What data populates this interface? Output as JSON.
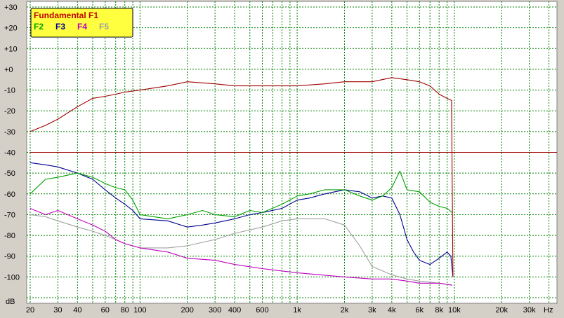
{
  "chart_data": {
    "type": "line",
    "title": "",
    "xlabel": "",
    "ylabel": "",
    "x_unit_label": "Hz",
    "y_unit_label": "dB",
    "x_scale": "log",
    "xlim": [
      19,
      45000
    ],
    "ylim": [
      -110,
      30
    ],
    "grid": true,
    "legend_position": "top-left",
    "legend_title": "Fundamental F1",
    "y_ticks": [
      30,
      20,
      10,
      0,
      -10,
      -20,
      -30,
      -40,
      -50,
      -60,
      -70,
      -80,
      -90,
      -100
    ],
    "y_tick_labels": [
      "+30",
      "+20",
      "+10",
      "+0",
      "-10",
      "-20",
      "-30",
      "-40",
      "-50",
      "-60",
      "-70",
      "-80",
      "-90",
      "-100"
    ],
    "x_ticks": [
      20,
      30,
      40,
      60,
      80,
      100,
      200,
      300,
      400,
      600,
      1000,
      2000,
      3000,
      4000,
      6000,
      8000,
      10000,
      20000,
      30000
    ],
    "x_tick_labels": [
      "20",
      "30",
      "40",
      "60",
      "80",
      "100",
      "200",
      "300",
      "400",
      "600",
      "1k",
      "2k",
      "3k",
      "4k",
      "6k",
      "8k",
      "10k",
      "20k",
      "30k"
    ],
    "reference_level": -40,
    "series": [
      {
        "name": "F1",
        "color": "#a00000",
        "x": [
          20,
          25,
          30,
          40,
          50,
          60,
          70,
          80,
          100,
          150,
          200,
          300,
          400,
          600,
          800,
          1000,
          1500,
          2000,
          3000,
          4000,
          5000,
          6000,
          7000,
          8000,
          9000,
          9600,
          9800
        ],
        "y": [
          -30,
          -27,
          -24,
          -18,
          -14,
          -13,
          -12,
          -11,
          -10,
          -8,
          -6,
          -7,
          -8,
          -8,
          -8,
          -8,
          -7,
          -6,
          -6,
          -4,
          -5,
          -6,
          -8,
          -12,
          -14,
          -15,
          -100
        ]
      },
      {
        "name": "F2",
        "color": "#00a000",
        "x": [
          20,
          25,
          30,
          40,
          50,
          60,
          70,
          80,
          90,
          100,
          150,
          200,
          250,
          300,
          400,
          500,
          600,
          800,
          1000,
          1200,
          1500,
          2000,
          2500,
          3000,
          3500,
          4000,
          4500,
          5000,
          6000,
          7000,
          8000,
          9000,
          9700
        ],
        "y": [
          -60,
          -53,
          -52,
          -50,
          -52,
          -55,
          -57,
          -58,
          -63,
          -70,
          -72,
          -70,
          -68,
          -70,
          -71,
          -68,
          -69,
          -65,
          -61,
          -60,
          -58,
          -58,
          -61,
          -63,
          -61,
          -57,
          -49,
          -58,
          -59,
          -64,
          -66,
          -67,
          -69
        ]
      },
      {
        "name": "F3",
        "color": "#000090",
        "x": [
          20,
          25,
          30,
          40,
          50,
          60,
          70,
          80,
          90,
          100,
          150,
          200,
          250,
          300,
          400,
          500,
          600,
          800,
          1000,
          1200,
          1500,
          2000,
          2500,
          3000,
          3500,
          4000,
          4500,
          5000,
          5500,
          6000,
          7000,
          8000,
          9000,
          9500,
          9800
        ],
        "y": [
          -45,
          -46,
          -47,
          -50,
          -53,
          -58,
          -62,
          -65,
          -68,
          -72,
          -73,
          -76,
          -75,
          -74,
          -72,
          -70,
          -69,
          -67,
          -63,
          -62,
          -60,
          -58,
          -59,
          -62,
          -61,
          -62,
          -70,
          -82,
          -88,
          -92,
          -94,
          -91,
          -88,
          -90,
          -100
        ]
      },
      {
        "name": "F4",
        "color": "#c000c0",
        "x": [
          20,
          25,
          30,
          40,
          50,
          60,
          70,
          80,
          100,
          150,
          200,
          300,
          400,
          600,
          1000,
          2000,
          3000,
          4000,
          5000,
          6000,
          8000,
          9700
        ],
        "y": [
          -67,
          -70,
          -68,
          -72,
          -75,
          -78,
          -82,
          -84,
          -86,
          -88,
          -91,
          -92,
          -94,
          -96,
          -98,
          -100,
          -101,
          -101,
          -102,
          -103,
          -103,
          -104
        ]
      },
      {
        "name": "F5",
        "color": "#a0a0a0",
        "x": [
          20,
          25,
          30,
          40,
          50,
          60,
          70,
          80,
          100,
          150,
          200,
          300,
          400,
          600,
          800,
          1000,
          1500,
          2000,
          2500,
          3000,
          4000,
          5000,
          6000,
          8000,
          9700
        ],
        "y": [
          -70,
          -71,
          -73,
          -76,
          -78,
          -80,
          -82,
          -84,
          -86,
          -86,
          -85,
          -82,
          -79,
          -76,
          -73,
          -72,
          -72,
          -75,
          -85,
          -95,
          -99,
          -101,
          -102,
          -103,
          -104
        ]
      }
    ]
  }
}
